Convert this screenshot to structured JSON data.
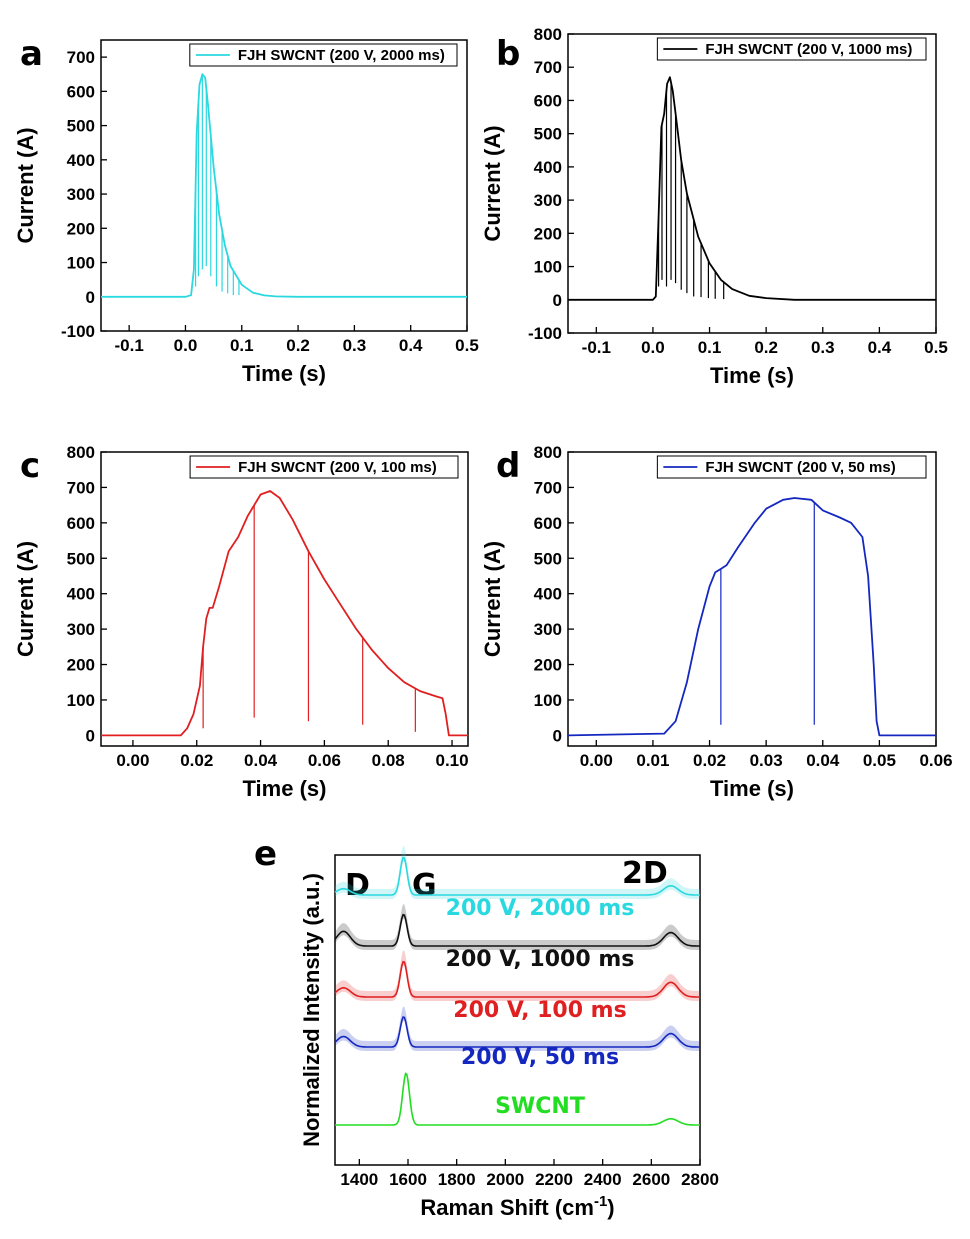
{
  "chart_data": [
    {
      "panel": "a",
      "type": "line",
      "xlabel": "Time (s)",
      "ylabel": "Current (A)",
      "xlim": [
        -0.15,
        0.5
      ],
      "ylim": [
        -100,
        750
      ],
      "xticks": [
        -0.1,
        0.0,
        0.1,
        0.2,
        0.3,
        0.4,
        0.5
      ],
      "xtick_labels": [
        "-0.1",
        "0.0",
        "0.1",
        "0.2",
        "0.3",
        "0.4",
        "0.5"
      ],
      "yticks": [
        -100,
        0,
        100,
        200,
        300,
        400,
        500,
        600,
        700
      ],
      "ytick_labels": [
        "-100",
        "0",
        "100",
        "200",
        "300",
        "400",
        "500",
        "600",
        "700"
      ],
      "legend": "FJH SWCNT (200 V, 2000 ms)",
      "color": "#2ad8e0",
      "series": [
        {
          "name": "FJH SWCNT (200 V, 2000 ms)",
          "x": [
            -0.15,
            0.0,
            0.01,
            0.015,
            0.02,
            0.025,
            0.03,
            0.035,
            0.04,
            0.05,
            0.06,
            0.07,
            0.08,
            0.1,
            0.12,
            0.14,
            0.16,
            0.2,
            0.5
          ],
          "y": [
            0,
            0,
            5,
            80,
            480,
            620,
            650,
            640,
            560,
            380,
            240,
            150,
            90,
            35,
            12,
            4,
            1,
            0,
            0
          ]
        }
      ],
      "dips": [
        {
          "x": 0.018,
          "y": 30
        },
        {
          "x": 0.023,
          "y": 60
        },
        {
          "x": 0.03,
          "y": 80
        },
        {
          "x": 0.037,
          "y": 90
        },
        {
          "x": 0.045,
          "y": 60
        },
        {
          "x": 0.055,
          "y": 30
        },
        {
          "x": 0.065,
          "y": 15
        },
        {
          "x": 0.075,
          "y": 10
        },
        {
          "x": 0.085,
          "y": 5
        },
        {
          "x": 0.095,
          "y": 5
        }
      ]
    },
    {
      "panel": "b",
      "type": "line",
      "xlabel": "Time (s)",
      "ylabel": "Current (A)",
      "xlim": [
        -0.15,
        0.5
      ],
      "ylim": [
        -100,
        800
      ],
      "xticks": [
        -0.1,
        0.0,
        0.1,
        0.2,
        0.3,
        0.4,
        0.5
      ],
      "xtick_labels": [
        "-0.1",
        "0.0",
        "0.1",
        "0.2",
        "0.3",
        "0.4",
        "0.5"
      ],
      "yticks": [
        -100,
        0,
        100,
        200,
        300,
        400,
        500,
        600,
        700,
        800
      ],
      "ytick_labels": [
        "-100",
        "0",
        "100",
        "200",
        "300",
        "400",
        "500",
        "600",
        "700",
        "800"
      ],
      "legend": "FJH SWCNT (200 V, 1000 ms)",
      "color": "#000000",
      "series": [
        {
          "name": "FJH SWCNT (200 V, 1000 ms)",
          "x": [
            -0.15,
            0.0,
            0.005,
            0.01,
            0.015,
            0.02,
            0.025,
            0.03,
            0.035,
            0.04,
            0.05,
            0.06,
            0.08,
            0.1,
            0.12,
            0.14,
            0.17,
            0.2,
            0.25,
            0.5
          ],
          "y": [
            0,
            0,
            10,
            250,
            520,
            560,
            650,
            670,
            630,
            560,
            420,
            320,
            190,
            110,
            60,
            32,
            12,
            5,
            0,
            0
          ]
        }
      ],
      "dips": [
        {
          "x": 0.01,
          "y": 40
        },
        {
          "x": 0.016,
          "y": 60
        },
        {
          "x": 0.024,
          "y": 40
        },
        {
          "x": 0.032,
          "y": 60
        },
        {
          "x": 0.04,
          "y": 50
        },
        {
          "x": 0.05,
          "y": 30
        },
        {
          "x": 0.06,
          "y": 20
        },
        {
          "x": 0.072,
          "y": 10
        },
        {
          "x": 0.085,
          "y": 8
        },
        {
          "x": 0.098,
          "y": 5
        },
        {
          "x": 0.11,
          "y": 3
        },
        {
          "x": 0.125,
          "y": 2
        }
      ]
    },
    {
      "panel": "c",
      "type": "line",
      "xlabel": "Time (s)",
      "ylabel": "Current (A)",
      "xlim": [
        -0.01,
        0.105
      ],
      "ylim": [
        -30,
        800
      ],
      "xticks": [
        0.0,
        0.02,
        0.04,
        0.06,
        0.08,
        0.1
      ],
      "xtick_labels": [
        "0.00",
        "0.02",
        "0.04",
        "0.06",
        "0.08",
        "0.10"
      ],
      "yticks": [
        0,
        100,
        200,
        300,
        400,
        500,
        600,
        700,
        800
      ],
      "ytick_labels": [
        "0",
        "100",
        "200",
        "300",
        "400",
        "500",
        "600",
        "700",
        "800"
      ],
      "legend": "FJH SWCNT (200 V, 100 ms)",
      "color": "#e02020",
      "series": [
        {
          "name": "FJH SWCNT (200 V, 100 ms)",
          "x": [
            -0.01,
            0.015,
            0.017,
            0.019,
            0.021,
            0.022,
            0.023,
            0.024,
            0.025,
            0.027,
            0.03,
            0.033,
            0.036,
            0.04,
            0.043,
            0.046,
            0.05,
            0.055,
            0.06,
            0.065,
            0.07,
            0.075,
            0.08,
            0.085,
            0.09,
            0.095,
            0.097,
            0.098,
            0.099,
            0.105
          ],
          "y": [
            0,
            0,
            20,
            60,
            140,
            250,
            330,
            360,
            360,
            420,
            520,
            560,
            620,
            680,
            690,
            670,
            610,
            520,
            440,
            370,
            300,
            240,
            190,
            150,
            125,
            110,
            105,
            60,
            0,
            0
          ]
        }
      ],
      "dips": [
        {
          "x": 0.022,
          "y": 20
        },
        {
          "x": 0.038,
          "y": 50
        },
        {
          "x": 0.055,
          "y": 40
        },
        {
          "x": 0.072,
          "y": 30
        },
        {
          "x": 0.0885,
          "y": 10
        }
      ]
    },
    {
      "panel": "d",
      "type": "line",
      "xlabel": "Time (s)",
      "ylabel": "Current (A)",
      "xlim": [
        -0.005,
        0.06
      ],
      "ylim": [
        -30,
        800
      ],
      "xticks": [
        0.0,
        0.01,
        0.02,
        0.03,
        0.04,
        0.05,
        0.06
      ],
      "xtick_labels": [
        "0.00",
        "0.01",
        "0.02",
        "0.03",
        "0.04",
        "0.05",
        "0.06"
      ],
      "yticks": [
        0,
        100,
        200,
        300,
        400,
        500,
        600,
        700,
        800
      ],
      "ytick_labels": [
        "0",
        "100",
        "200",
        "300",
        "400",
        "500",
        "600",
        "700",
        "800"
      ],
      "legend": "FJH SWCNT (200 V, 50 ms)",
      "color": "#1428c0",
      "series": [
        {
          "name": "FJH SWCNT (200 V, 50 ms)",
          "x": [
            -0.005,
            0.012,
            0.014,
            0.016,
            0.018,
            0.02,
            0.021,
            0.022,
            0.023,
            0.025,
            0.028,
            0.03,
            0.033,
            0.035,
            0.038,
            0.04,
            0.043,
            0.045,
            0.047,
            0.048,
            0.049,
            0.0495,
            0.05,
            0.06
          ],
          "y": [
            0,
            5,
            40,
            150,
            300,
            420,
            460,
            470,
            480,
            530,
            600,
            640,
            665,
            670,
            665,
            635,
            615,
            600,
            560,
            450,
            200,
            40,
            0,
            0
          ]
        }
      ],
      "dips": [
        {
          "x": 0.022,
          "y": 30
        },
        {
          "x": 0.0385,
          "y": 30
        }
      ]
    },
    {
      "panel": "e",
      "type": "line",
      "xlabel": "Raman Shift (cm-1)",
      "xlabel_main": "Raman Shift (cm",
      "xlabel_sup": "-1",
      "xlabel_close": ")",
      "ylabel": "Normalized Intensity (a.u.)",
      "xlim": [
        1300,
        2800
      ],
      "xticks": [
        1400,
        1600,
        1800,
        2000,
        2200,
        2400,
        2600,
        2800
      ],
      "xtick_labels": [
        "1400",
        "1600",
        "1800",
        "2000",
        "2200",
        "2400",
        "2600",
        "2800"
      ],
      "peak_labels": [
        "D",
        "G",
        "2D"
      ],
      "series": [
        {
          "name": "200 V, 2000 ms",
          "color": "#2ad8e0",
          "offset": 4,
          "d": 0.15,
          "g": 0.9,
          "d2": 0.22
        },
        {
          "name": "200 V, 1000 ms",
          "color": "#111111",
          "offset": 3,
          "d": 0.35,
          "g": 0.75,
          "d2": 0.32
        },
        {
          "name": "200 V, 100 ms",
          "color": "#e02020",
          "offset": 2,
          "d": 0.22,
          "g": 0.85,
          "d2": 0.35
        },
        {
          "name": "200 V, 50 ms",
          "color": "#1428c0",
          "offset": 1,
          "d": 0.25,
          "g": 0.72,
          "d2": 0.32
        },
        {
          "name": "SWCNT",
          "color": "#22dd22",
          "offset": 0,
          "d": 0.0,
          "g": 1.0,
          "d2": 0.12
        }
      ]
    }
  ]
}
